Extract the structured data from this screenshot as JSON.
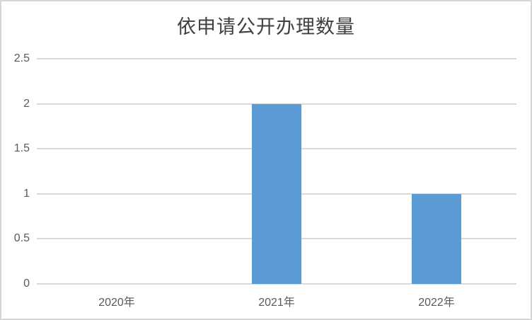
{
  "chart_data": {
    "type": "bar",
    "title": "依申请公开办理数量",
    "categories": [
      "2020年",
      "2021年",
      "2022年"
    ],
    "values": [
      0,
      2,
      1
    ],
    "xlabel": "",
    "ylabel": "",
    "ylim": [
      0,
      2.5
    ],
    "ytick_values": [
      0,
      0.5,
      1,
      1.5,
      2,
      2.5
    ],
    "ytick_labels": [
      "0",
      "0.5",
      "1",
      "1.5",
      "2",
      "2.5"
    ],
    "grid": true,
    "legend": false,
    "bar_color": "#5B9BD5",
    "gridline_color": "#D9D9D9",
    "axis_label_color": "#595959",
    "title_color": "#404040",
    "border_color": "#D6D6D6",
    "background_color": "#FFFFFF"
  }
}
